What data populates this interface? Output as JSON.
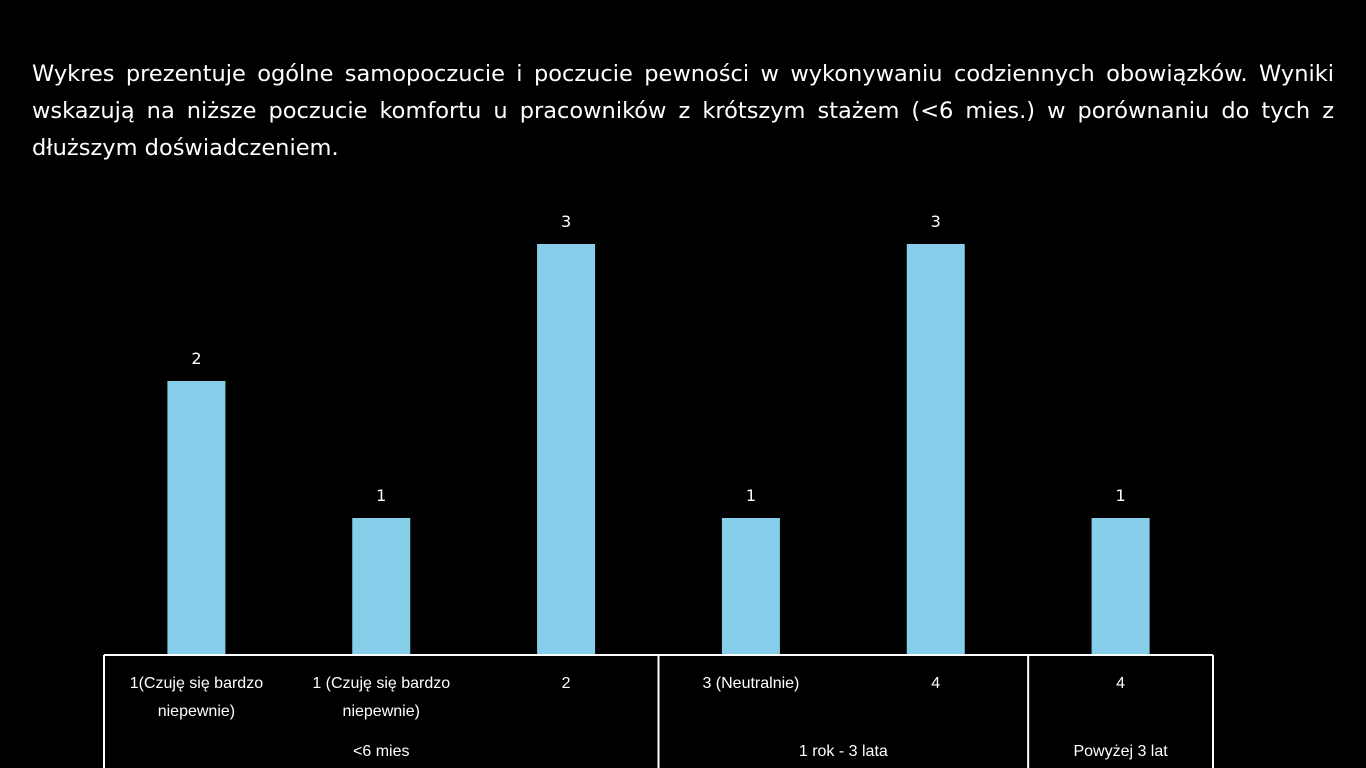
{
  "description": "Wykres prezentuje ogólne samopoczucie i poczucie pewności w wykonywaniu codziennych obowiązków. Wyniki wskazują na niższe poczucie komfortu u pracowników z krótszym stażem (<6 mies.) w porównaniu do tych z dłuższym doświadczeniem.",
  "colors": {
    "background": "#000000",
    "bar": "#87CEEB",
    "text": "#FFFFFF",
    "axis": "#FFFFFF"
  },
  "chart_data": {
    "type": "bar",
    "title": "",
    "xlabel": "",
    "ylabel": "",
    "grid": false,
    "legend": "none",
    "ylim": [
      0,
      3
    ],
    "categories": [
      "1(Czuję się bardzo niepewnie)",
      "1 (Czuję się bardzo niepewnie)",
      "2",
      "3 (Neutralnie)",
      "4",
      "4"
    ],
    "category_lines": [
      [
        "1(Czuję się bardzo",
        "niepewnie)"
      ],
      [
        "1 (Czuję się bardzo",
        "niepewnie)"
      ],
      [
        "2"
      ],
      [
        "3 (Neutralnie)"
      ],
      [
        "4"
      ],
      [
        "4"
      ]
    ],
    "groups": [
      {
        "label": "<6 mies",
        "count": 3
      },
      {
        "label": "1 rok - 3 lata",
        "count": 2
      },
      {
        "label": "Powyżej 3 lat",
        "count": 1
      }
    ],
    "values": [
      2,
      1,
      3,
      1,
      3,
      1
    ]
  }
}
